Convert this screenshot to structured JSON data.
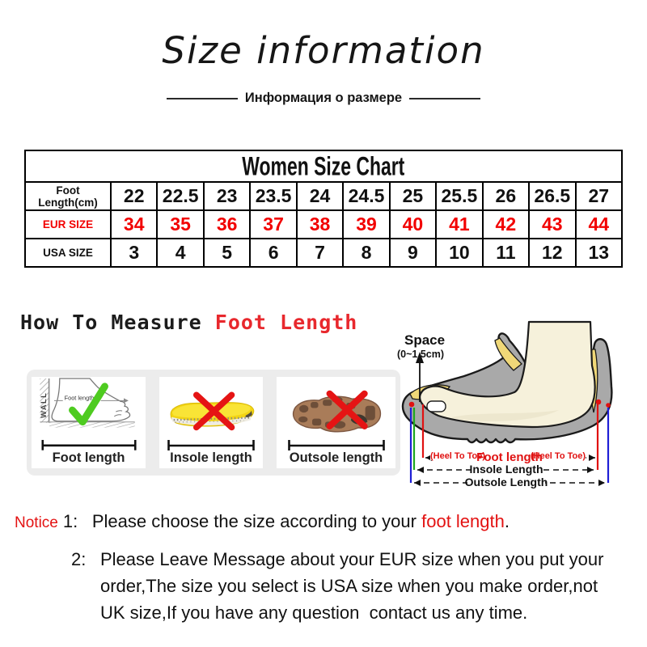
{
  "page": {
    "title": "Size information",
    "subtitle": "Информация о размере"
  },
  "size_chart": {
    "title": "Women Size Chart",
    "rows": [
      {
        "label": "Foot Length(cm)",
        "red": false,
        "values": [
          "22",
          "22.5",
          "23",
          "23.5",
          "24",
          "24.5",
          "25",
          "25.5",
          "26",
          "26.5",
          "27"
        ]
      },
      {
        "label": "EUR SIZE",
        "red": true,
        "values": [
          "34",
          "35",
          "36",
          "37",
          "38",
          "39",
          "40",
          "41",
          "42",
          "43",
          "44"
        ]
      },
      {
        "label": "USA SIZE",
        "red": false,
        "values": [
          "3",
          "4",
          "5",
          "6",
          "7",
          "8",
          "9",
          "10",
          "11",
          "12",
          "13"
        ]
      }
    ]
  },
  "measure_heading": {
    "black": "How To Measure ",
    "red": "Foot Length"
  },
  "measure_boxes": {
    "wall_label": "WALL",
    "sketch_label": "Foot length",
    "items": [
      {
        "label": "Foot length",
        "mark": "check"
      },
      {
        "label": "Insole length",
        "mark": "cross"
      },
      {
        "label": "Outsole length",
        "mark": "cross"
      }
    ]
  },
  "shoe_diagram": {
    "space_title": "Space",
    "space_range": "(0~1.5cm)",
    "heel_to_toe": "(Heel To Toe)",
    "foot_length": "Foot length",
    "insole_length": "Insole Length",
    "outsole_length": "Outsole Length"
  },
  "notice": {
    "label": "Notice",
    "item1": {
      "num": "1:",
      "text_before": "Please choose the size according to your ",
      "highlight": "foot length",
      "text_after": "."
    },
    "item2": {
      "num": "2:",
      "lines": [
        "Please Leave Message about your EUR size when you put your",
        "order,The size you select is USA size when you make order,not",
        "UK size,If you have any question  contact us any time."
      ]
    }
  },
  "colors": {
    "table_red": "#f20000",
    "accent_red": "#e31212",
    "check_green": "#4ecb20",
    "panel_gray": "#ececec",
    "line_blue": "#1f1fd6",
    "line_green": "#1fa81f"
  }
}
